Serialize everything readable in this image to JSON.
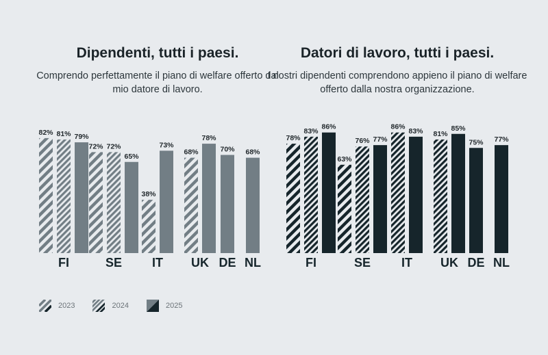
{
  "colors": {
    "background": "#e8ebee",
    "employee_color": "#727e85",
    "employer_color": "#16252b",
    "axis_text": "#16252b",
    "label_text": "#22292d"
  },
  "legend": {
    "items": [
      {
        "label": "2023",
        "style": "sparse-hatch"
      },
      {
        "label": "2024",
        "style": "dense-hatch"
      },
      {
        "label": "2025",
        "style": "solid"
      }
    ]
  },
  "chart_data": [
    {
      "type": "bar",
      "title": "Dipendenti, tutti i paesi.",
      "subtitle": "Comprendo perfettamente il piano di welfare offerto dal mio datore di lavoro.",
      "categories": [
        "FI",
        "SE",
        "IT",
        "UK",
        "DE",
        "NL"
      ],
      "series": [
        {
          "name": "2023",
          "values": [
            82,
            72,
            38,
            68,
            null,
            null
          ]
        },
        {
          "name": "2024",
          "values": [
            81,
            72,
            null,
            null,
            null,
            null
          ]
        },
        {
          "name": "2025",
          "values": [
            79,
            65,
            73,
            78,
            70,
            68
          ]
        }
      ],
      "value_suffix": "%",
      "ylim": [
        0,
        100
      ]
    },
    {
      "type": "bar",
      "title": "Datori di lavoro, tutti i paesi.",
      "subtitle": "I nostri dipendenti comprendono appieno il piano di welfare offerto dalla nostra organizzazione.",
      "categories": [
        "FI",
        "SE",
        "IT",
        "UK",
        "DE",
        "NL"
      ],
      "series": [
        {
          "name": "2023",
          "values": [
            78,
            63,
            null,
            null,
            null,
            null
          ]
        },
        {
          "name": "2024",
          "values": [
            83,
            76,
            86,
            81,
            null,
            null
          ]
        },
        {
          "name": "2025",
          "values": [
            86,
            77,
            83,
            85,
            75,
            77
          ]
        }
      ],
      "value_suffix": "%",
      "ylim": [
        0,
        100
      ]
    }
  ]
}
